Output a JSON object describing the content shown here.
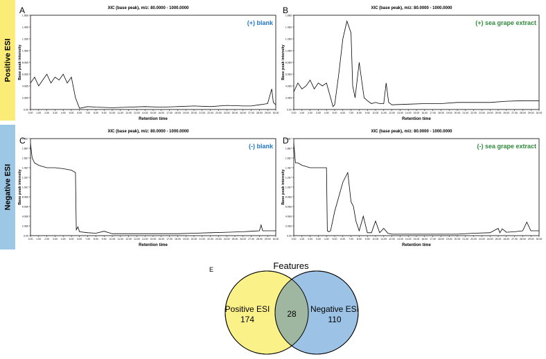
{
  "bands": {
    "positive": "Positive ESI",
    "negative": "Negative ESI"
  },
  "panels": [
    {
      "letter": "A",
      "title": "XIC (base peak), m/z: 80.0000 - 1000.0000",
      "label": "(+) blank",
      "label_color": "#1f78c8",
      "xlabel": "Retention time",
      "ylabel": "Base peak intensity",
      "yticks": [
        "1.6E6",
        "1.4E6",
        "1.2E6",
        "1.0E6",
        "8.0E5",
        "6.0E5",
        "4.0E5",
        "2.0E5",
        "0.00"
      ]
    },
    {
      "letter": "B",
      "title": "XIC (base peak), m/z: 80.0000 - 1000.0000",
      "label": "(+) sea grape extract",
      "label_color": "#2e8b3a",
      "xlabel": "Retention time",
      "ylabel": "Base peak intensity",
      "yticks": [
        "1.6E6",
        "1.4E6",
        "1.2E6",
        "1.0E6",
        "8.0E5",
        "6.0E5",
        "4.0E5",
        "2.0E5",
        "0.00"
      ]
    },
    {
      "letter": "C",
      "title": "XIC (base peak), m/z: 80.0000 - 1000.0000",
      "label": "(-) blank",
      "label_color": "#1f78c8",
      "xlabel": "Retention time",
      "ylabel": "Base peak intensity",
      "yticks": [
        "2.0E7",
        "1.8E7",
        "1.6E7",
        "1.4E7",
        "1.2E7",
        "1.0E7",
        "8.0E6",
        "6.0E6",
        "4.0E6",
        "2.0E6",
        "0.00"
      ]
    },
    {
      "letter": "D",
      "title": "XIC (base peak), m/z: 80.0000 - 1000.0000",
      "label": "(-) sea grape extract",
      "label_color": "#2e8b3a",
      "xlabel": "Retention time",
      "ylabel": "Base peak intensity",
      "yticks": [
        "2.0E7",
        "1.8E7",
        "1.6E7",
        "1.4E7",
        "1.2E7",
        "1.0E7",
        "8.0E6",
        "6.0E6",
        "4.0E6",
        "2.0E6",
        "0.00"
      ]
    }
  ],
  "xticks": [
    "0.00",
    "1.00",
    "2.00",
    "3.00",
    "4.00",
    "5.00",
    "6.00",
    "7.00",
    "8.00",
    "9.00",
    "10.00",
    "11.00",
    "12.00",
    "13.00",
    "14.00",
    "15.00",
    "16.00",
    "17.00",
    "18.00",
    "19.00",
    "20.00",
    "21.00",
    "22.00",
    "23.00",
    "24.00",
    "25.00",
    "26.00",
    "27.00",
    "28.00",
    "29.00",
    "30.00"
  ],
  "venn": {
    "letter": "E",
    "title": "Features",
    "left_label": "Positive ESI",
    "left_value": "174",
    "overlap_value": "28",
    "right_label": "Negative ESI",
    "right_value": "110",
    "left_color": "#fbf189",
    "right_color": "#9cc3e6",
    "overlap_color": "#9fb7a0"
  },
  "chart_data": [
    {
      "type": "line",
      "panel": "A",
      "xlim": [
        0,
        30
      ],
      "ylim": [
        0,
        1.6
      ],
      "series": [
        {
          "name": "(+) blank",
          "x": [
            0,
            0.5,
            1,
            1.5,
            2,
            2.5,
            3,
            3.5,
            4,
            4.5,
            5,
            5.5,
            6,
            7,
            8,
            10,
            12,
            14,
            16,
            18,
            20,
            22,
            24,
            26,
            27,
            28,
            29,
            29.5,
            29.7,
            30
          ],
          "y": [
            0.45,
            0.55,
            0.4,
            0.5,
            0.6,
            0.45,
            0.55,
            0.5,
            0.6,
            0.45,
            0.55,
            0.2,
            0.02,
            0.05,
            0.04,
            0.03,
            0.04,
            0.05,
            0.04,
            0.05,
            0.06,
            0.05,
            0.07,
            0.06,
            0.06,
            0.08,
            0.1,
            0.35,
            0.12,
            0.08
          ]
        }
      ]
    },
    {
      "type": "line",
      "panel": "B",
      "xlim": [
        0,
        30
      ],
      "ylim": [
        0,
        1.6
      ],
      "series": [
        {
          "name": "(+) sea grape extract",
          "x": [
            0,
            0.5,
            1,
            1.5,
            2,
            2.5,
            3,
            3.5,
            4,
            4.5,
            4.8,
            5,
            5.5,
            6,
            6.5,
            7,
            7.2,
            7.5,
            8,
            8.3,
            8.6,
            9,
            9.5,
            10,
            10.5,
            11,
            11.3,
            11.6,
            12,
            14,
            16,
            18,
            20,
            22,
            24,
            26,
            28,
            30
          ],
          "y": [
            0.3,
            0.45,
            0.35,
            0.4,
            0.5,
            0.35,
            0.45,
            0.4,
            0.45,
            0.2,
            0.05,
            0.08,
            0.6,
            1.2,
            1.5,
            1.3,
            0.4,
            0.2,
            0.8,
            0.5,
            0.2,
            0.15,
            0.1,
            0.12,
            0.1,
            0.1,
            0.45,
            0.12,
            0.08,
            0.09,
            0.1,
            0.1,
            0.12,
            0.12,
            0.12,
            0.14,
            0.15,
            0.15
          ]
        }
      ]
    },
    {
      "type": "line",
      "panel": "C",
      "xlim": [
        0,
        30
      ],
      "ylim": [
        0,
        20
      ],
      "series": [
        {
          "name": "(-) blank",
          "x": [
            0,
            0.2,
            0.5,
            1,
            2,
            3,
            4,
            5,
            5.5,
            5.6,
            5.8,
            6,
            7,
            8,
            9,
            10,
            12,
            14,
            16,
            18,
            20,
            22,
            24,
            26,
            27,
            28,
            28.2,
            28.4,
            29,
            30
          ],
          "y": [
            19,
            16,
            15,
            14.5,
            14,
            14,
            13.8,
            13.5,
            13,
            1.2,
            1.8,
            0.8,
            0.6,
            0.5,
            0.9,
            0.4,
            0.4,
            0.4,
            0.4,
            0.4,
            0.5,
            0.6,
            0.7,
            0.8,
            0.9,
            1,
            2.2,
            1,
            1,
            1
          ]
        }
      ]
    },
    {
      "type": "line",
      "panel": "D",
      "xlim": [
        0,
        30
      ],
      "ylim": [
        0,
        20
      ],
      "series": [
        {
          "name": "(-) sea grape extract",
          "x": [
            0,
            0.2,
            0.5,
            1,
            2,
            3,
            4,
            4.1,
            4.3,
            4.5,
            5,
            5.5,
            6,
            6.3,
            6.6,
            7,
            7.3,
            7.6,
            8,
            8.5,
            9,
            9.5,
            10,
            10.5,
            11,
            11.5,
            12,
            14,
            16,
            18,
            20,
            22,
            24,
            25,
            25.2,
            25.5,
            26,
            27,
            28,
            28.5,
            29,
            29.5,
            30
          ],
          "y": [
            19,
            15,
            15,
            14.5,
            14,
            14,
            14,
            1,
            0.8,
            1,
            5,
            8,
            11,
            12,
            13,
            7,
            6,
            3,
            1,
            4,
            0.6,
            0.6,
            3,
            0.6,
            1.5,
            0.5,
            0.3,
            0.3,
            0.3,
            0.3,
            0.3,
            0.5,
            0.6,
            1.5,
            0.6,
            1.4,
            0.7,
            0.8,
            1,
            2.8,
            1,
            1,
            1
          ]
        }
      ]
    }
  ]
}
